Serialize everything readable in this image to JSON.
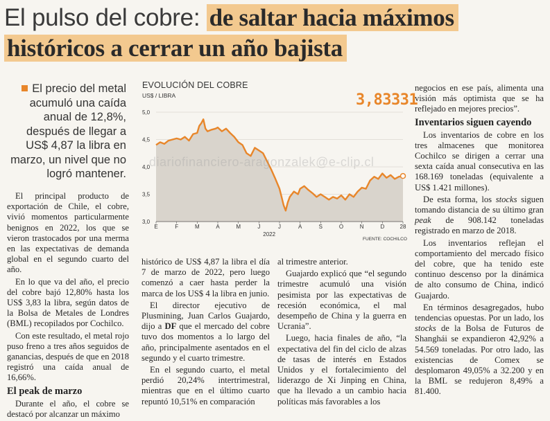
{
  "headline": {
    "part1": "El pulso del cobre: ",
    "part2": "de saltar hacia máximos",
    "part3": "históricos a cerrar un año bajista"
  },
  "lead": "El precio del metal acumuló una caída anual de 12,8%, después de llegar a US$ 4,87 la libra en marzo, un nivel que no logró mantener.",
  "col1": {
    "p1": "El principal producto de exportación de Chile, el cobre, vivió momentos particularmente benignos en 2022, los que se vieron trastocados por una merma en las expectativas de demanda global en el segundo cuarto del año.",
    "p2": "En lo que va del año, el precio del cobre bajó 12,80% hasta los US$ 3,83 la libra, según datos de la Bolsa de Metales de Londres (BML) recopilados por Cochilco.",
    "p3": "Con este resultado, el metal rojo puso freno a tres años seguidos de ganancias, después de que en 2018 registró una caída anual de 16,66%.",
    "h": "El peak de marzo",
    "p4": "Durante el año, el cobre se destacó por alcanzar un máximo"
  },
  "col2": {
    "p1": "histórico de US$ 4,87 la libra el día 7 de marzo de 2022, pero luego comenzó a caer hasta perder la marca de los US$ 4 la libra en junio.",
    "p2a": "El director ejecutivo de Plusmining, Juan Carlos Guajardo, dijo a ",
    "p2b": "DF",
    "p2c": " que el mercado del cobre tuvo dos momentos a lo largo del año, principalmente asentados en el segundo y el cuarto trimestre.",
    "p3": "En el segundo cuarto, el metal perdió 20,24% intertrimestral, mientras que en el último cuarto repuntó 10,51% en comparación"
  },
  "col3": {
    "p1": "al trimestre anterior.",
    "p2": "Guajardo explicó que “el segundo trimestre acumuló una visión pesimista por las expectativas de recesión económica, el mal desempeño de China y la guerra en Ucrania”.",
    "p3": "Luego, hacia finales de año, “la expectativa del fin del ciclo de alzas de tasas de interés en Estados Unidos y el fortalecimiento del liderazgo de Xi Jinping en China, que ha llevado a un cambio hacia políticas más favorables a los"
  },
  "col4": {
    "p1": "negocios en ese país, alimenta una visión más optimista que se ha reflejado en mejores precios”.",
    "h": "Inventarios siguen cayendo",
    "p2": "Los inventarios de cobre en los tres almacenes que monitorea Cochilco se dirigen a cerrar una sexta caída anual consecutiva en las 168.169 toneladas (equivalente a US$ 1.421 millones).",
    "p3a": "De esta forma, los ",
    "p3b": "stocks",
    "p3c": " siguen tomando distancia de su último gran ",
    "p3d": "peak",
    "p3e": " de 908.142 toneladas registrado en marzo de 2018.",
    "p4": "Los inventarios reflejan el comportamiento del mercado físico del cobre, que ha tenido este continuo descenso por la dinámica de alto consumo de China, indicó Guajardo.",
    "p5a": "En términos desagregados, hubo tendencias opuestas. Por un lado, los ",
    "p5b": "stocks",
    "p5c": " de la Bolsa de Futuros de Shanghái se expandieron 42,92% a 54.569 toneladas. Por otro lado, las existencias de Comex se desplomaron 49,05% a 32.200 y en la BML se redujeron 8,49% a 81.400."
  },
  "watermark": "diariofinanciero-aragonzalek@e-clip.cl",
  "colors": {
    "accent": "#e8862a",
    "highlight": "#f3c98f",
    "area": "#d9d4cc"
  },
  "chart_data": {
    "type": "area",
    "title": "EVOLUCIÓN DEL COBRE",
    "unit": "US$ / LIBRA",
    "last_value_label": "3,83331",
    "source": "FUENTE: COCHILCO",
    "year_label": "2022",
    "categories": [
      "E",
      "F",
      "M",
      "A",
      "M",
      "J",
      "J",
      "A",
      "S",
      "O",
      "N",
      "D",
      "28"
    ],
    "yticks": [
      "3,0",
      "3,5",
      "4,0",
      "4,5",
      "5,0"
    ],
    "ylim": [
      3.0,
      5.0
    ],
    "xlim": [
      0,
      12
    ],
    "grid": true,
    "points": [
      [
        0.0,
        4.4
      ],
      [
        0.2,
        4.45
      ],
      [
        0.4,
        4.42
      ],
      [
        0.6,
        4.48
      ],
      [
        0.8,
        4.5
      ],
      [
        1.0,
        4.52
      ],
      [
        1.2,
        4.5
      ],
      [
        1.4,
        4.55
      ],
      [
        1.6,
        4.48
      ],
      [
        1.8,
        4.6
      ],
      [
        2.0,
        4.62
      ],
      [
        2.1,
        4.75
      ],
      [
        2.2,
        4.8
      ],
      [
        2.3,
        4.87
      ],
      [
        2.4,
        4.7
      ],
      [
        2.5,
        4.65
      ],
      [
        2.7,
        4.68
      ],
      [
        2.9,
        4.7
      ],
      [
        3.0,
        4.72
      ],
      [
        3.2,
        4.65
      ],
      [
        3.4,
        4.7
      ],
      [
        3.6,
        4.62
      ],
      [
        3.8,
        4.55
      ],
      [
        4.0,
        4.45
      ],
      [
        4.2,
        4.4
      ],
      [
        4.4,
        4.25
      ],
      [
        4.6,
        4.2
      ],
      [
        4.8,
        4.35
      ],
      [
        5.0,
        4.3
      ],
      [
        5.2,
        4.25
      ],
      [
        5.4,
        4.1
      ],
      [
        5.6,
        3.95
      ],
      [
        5.8,
        3.78
      ],
      [
        6.0,
        3.6
      ],
      [
        6.1,
        3.45
      ],
      [
        6.2,
        3.3
      ],
      [
        6.3,
        3.2
      ],
      [
        6.4,
        3.35
      ],
      [
        6.5,
        3.45
      ],
      [
        6.7,
        3.55
      ],
      [
        6.9,
        3.5
      ],
      [
        7.0,
        3.6
      ],
      [
        7.2,
        3.65
      ],
      [
        7.4,
        3.58
      ],
      [
        7.6,
        3.52
      ],
      [
        7.8,
        3.45
      ],
      [
        8.0,
        3.5
      ],
      [
        8.2,
        3.45
      ],
      [
        8.4,
        3.4
      ],
      [
        8.6,
        3.45
      ],
      [
        8.8,
        3.42
      ],
      [
        9.0,
        3.48
      ],
      [
        9.2,
        3.4
      ],
      [
        9.4,
        3.5
      ],
      [
        9.6,
        3.45
      ],
      [
        9.8,
        3.55
      ],
      [
        10.0,
        3.62
      ],
      [
        10.2,
        3.6
      ],
      [
        10.4,
        3.75
      ],
      [
        10.6,
        3.82
      ],
      [
        10.8,
        3.78
      ],
      [
        11.0,
        3.88
      ],
      [
        11.2,
        3.8
      ],
      [
        11.4,
        3.85
      ],
      [
        11.6,
        3.78
      ],
      [
        11.8,
        3.82
      ],
      [
        12.0,
        3.83331
      ]
    ]
  }
}
